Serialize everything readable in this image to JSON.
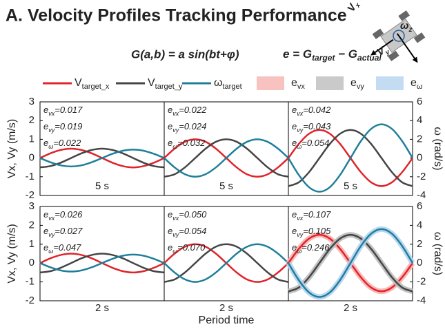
{
  "title": "A. Velocity Profiles Tracking Performance",
  "diagram_labels": [
    {
      "main": "V",
      "sub": "x"
    },
    {
      "main": "V",
      "sub": "y"
    },
    {
      "main": "ω",
      "sub": "z"
    }
  ],
  "formula": {
    "g": "G(a,b) = a sin(bt+φ)",
    "e_parts": [
      {
        "text": "e  =  G"
      },
      {
        "text": "target",
        "sub": true
      },
      {
        "text": " − G"
      },
      {
        "text": "actual",
        "sub": true
      }
    ]
  },
  "legend": [
    {
      "label": "V",
      "sub": "target_x",
      "color": "#e0242a",
      "kind": "line"
    },
    {
      "label": "V",
      "sub": "target_y",
      "color": "#454545",
      "kind": "line"
    },
    {
      "label": "ω",
      "sub": "target",
      "color": "#1f7f9a",
      "kind": "line"
    },
    {
      "label": "e",
      "sub": "vx",
      "color": "#f6b3b1",
      "kind": "patch"
    },
    {
      "label": "e",
      "sub": "vy",
      "color": "#bdbdbd",
      "kind": "patch"
    },
    {
      "label": "e",
      "sub": "ω",
      "color": "#b5d3ef",
      "kind": "patch"
    }
  ],
  "xlabel": "Period time",
  "chart_data": [
    {
      "type": "line",
      "xlabel": "5 s",
      "x": [
        0,
        1,
        2,
        3,
        4,
        5,
        6,
        7,
        8,
        9,
        10,
        11,
        12
      ],
      "xlim": [
        0,
        12
      ],
      "ylim": [
        -2,
        3
      ],
      "y2lim": [
        -4,
        6
      ],
      "yticks": [
        -2,
        -1,
        0,
        1,
        2,
        3
      ],
      "ylabel": "Vx, Vy (m/s)",
      "annotations": [
        {
          "symbol": "e",
          "sub": "vx",
          "text": "=0.017"
        },
        {
          "symbol": "e",
          "sub": "vy",
          "text": "=0.019"
        },
        {
          "symbol": "e",
          "sub": "ω",
          "text": "=0.022"
        }
      ],
      "series": [
        {
          "color": "#e0242a",
          "values": [
            0,
            0.25,
            0.43,
            0.5,
            0.43,
            0.25,
            0,
            -0.25,
            -0.43,
            -0.5,
            -0.43,
            -0.25,
            0
          ]
        },
        {
          "color": "#454545",
          "values": [
            -0.5,
            -0.43,
            -0.25,
            0,
            0.25,
            0.43,
            0.5,
            0.43,
            0.25,
            0,
            -0.25,
            -0.43,
            -0.5
          ]
        },
        {
          "color": "#1f7f9a",
          "axis": "y2",
          "values": [
            0,
            -0.45,
            -0.78,
            -0.9,
            -0.78,
            -0.45,
            0,
            0.45,
            0.78,
            0.9,
            0.78,
            0.45,
            0
          ]
        }
      ]
    },
    {
      "type": "line",
      "xlabel": "5 s",
      "x": [
        0,
        1,
        2,
        3,
        4,
        5,
        6,
        7,
        8,
        9,
        10,
        11,
        12
      ],
      "xlim": [
        0,
        12
      ],
      "ylim": [
        -2,
        3
      ],
      "y2lim": [
        -4,
        6
      ],
      "annotations": [
        {
          "symbol": "e",
          "sub": "vx",
          "text": "=0.022"
        },
        {
          "symbol": "e",
          "sub": "vy",
          "text": "=0.024"
        },
        {
          "symbol": "e",
          "sub": "ω",
          "text": "=0.032"
        }
      ],
      "series": [
        {
          "color": "#e0242a",
          "values": [
            0,
            0.5,
            0.87,
            1,
            0.87,
            0.5,
            0,
            -0.5,
            -0.87,
            -1,
            -0.87,
            -0.5,
            0
          ]
        },
        {
          "color": "#454545",
          "values": [
            -1,
            -0.87,
            -0.5,
            0,
            0.5,
            0.87,
            1,
            0.87,
            0.5,
            0,
            -0.5,
            -0.87,
            -1
          ]
        },
        {
          "color": "#1f7f9a",
          "axis": "y2",
          "values": [
            0,
            -1,
            -1.73,
            -2,
            -1.73,
            -1,
            0,
            1,
            1.73,
            2,
            1.73,
            1,
            0
          ]
        }
      ]
    },
    {
      "type": "line",
      "xlabel": "5 s",
      "x": [
        0,
        1,
        2,
        3,
        4,
        5,
        6,
        7,
        8,
        9,
        10,
        11,
        12
      ],
      "xlim": [
        0,
        12
      ],
      "ylim": [
        -2,
        3
      ],
      "y2lim": [
        -4,
        6
      ],
      "y2ticks": [
        -4,
        -2,
        0,
        2,
        4,
        6
      ],
      "y2label": "ω (rad/s)",
      "annotations": [
        {
          "symbol": "e",
          "sub": "vx",
          "text": "=0.042"
        },
        {
          "symbol": "e",
          "sub": "vy",
          "text": "=0.043"
        },
        {
          "symbol": "e",
          "sub": "ω",
          "text": "=0.054"
        }
      ],
      "series": [
        {
          "color": "#e0242a",
          "values": [
            0,
            0.75,
            1.3,
            1.5,
            1.3,
            0.75,
            0,
            -0.75,
            -1.3,
            -1.5,
            -1.3,
            -0.75,
            0
          ]
        },
        {
          "color": "#454545",
          "values": [
            -1.5,
            -1.3,
            -0.75,
            0,
            0.75,
            1.3,
            1.5,
            1.3,
            0.75,
            0,
            -0.75,
            -1.3,
            -1.5
          ]
        },
        {
          "color": "#1f7f9a",
          "axis": "y2",
          "values": [
            0,
            -1.8,
            -3.12,
            -3.6,
            -3.12,
            -1.8,
            0,
            1.8,
            3.12,
            3.6,
            3.12,
            1.8,
            0
          ]
        }
      ]
    },
    {
      "type": "line",
      "xlabel": "2 s",
      "x": [
        0,
        1,
        2,
        3,
        4,
        5,
        6,
        7,
        8,
        9,
        10,
        11,
        12
      ],
      "xlim": [
        0,
        12
      ],
      "ylim": [
        -2,
        3
      ],
      "y2lim": [
        -4,
        6
      ],
      "yticks": [
        -2,
        -1,
        0,
        1,
        2,
        3
      ],
      "ylabel": "Vx, Vy (m/s)",
      "annotations": [
        {
          "symbol": "e",
          "sub": "vx",
          "text": "=0.026"
        },
        {
          "symbol": "e",
          "sub": "vy",
          "text": "=0.027"
        },
        {
          "symbol": "e",
          "sub": "ω",
          "text": "=0.047"
        }
      ],
      "series": [
        {
          "color": "#e0242a",
          "values": [
            0,
            0.25,
            0.43,
            0.5,
            0.43,
            0.25,
            0,
            -0.25,
            -0.43,
            -0.5,
            -0.43,
            -0.25,
            0
          ]
        },
        {
          "color": "#454545",
          "values": [
            -0.5,
            -0.43,
            -0.25,
            0,
            0.25,
            0.43,
            0.5,
            0.43,
            0.25,
            0,
            -0.25,
            -0.43,
            -0.5
          ]
        },
        {
          "color": "#1f7f9a",
          "axis": "y2",
          "values": [
            0,
            -0.45,
            -0.78,
            -0.9,
            -0.78,
            -0.45,
            0,
            0.45,
            0.78,
            0.9,
            0.78,
            0.45,
            0
          ]
        }
      ]
    },
    {
      "type": "line",
      "xlabel": "2 s",
      "x": [
        0,
        1,
        2,
        3,
        4,
        5,
        6,
        7,
        8,
        9,
        10,
        11,
        12
      ],
      "xlim": [
        0,
        12
      ],
      "ylim": [
        -2,
        3
      ],
      "y2lim": [
        -4,
        6
      ],
      "annotations": [
        {
          "symbol": "e",
          "sub": "vx",
          "text": "=0.050"
        },
        {
          "symbol": "e",
          "sub": "vy",
          "text": "=0.054"
        },
        {
          "symbol": "e",
          "sub": "ω",
          "text": "=0.070"
        }
      ],
      "series": [
        {
          "color": "#e0242a",
          "values": [
            0,
            0.5,
            0.87,
            1,
            0.87,
            0.5,
            0,
            -0.5,
            -0.87,
            -1,
            -0.87,
            -0.5,
            0
          ]
        },
        {
          "color": "#454545",
          "values": [
            -1,
            -0.87,
            -0.5,
            0,
            0.5,
            0.87,
            1,
            0.87,
            0.5,
            0,
            -0.5,
            -0.87,
            -1
          ]
        },
        {
          "color": "#1f7f9a",
          "axis": "y2",
          "values": [
            0,
            -1,
            -1.73,
            -2,
            -1.73,
            -1,
            0,
            1,
            1.73,
            2,
            1.73,
            1,
            0
          ]
        }
      ]
    },
    {
      "type": "line",
      "xlabel": "2 s",
      "x": [
        0,
        1,
        2,
        3,
        4,
        5,
        6,
        7,
        8,
        9,
        10,
        11,
        12
      ],
      "xlim": [
        0,
        12
      ],
      "ylim": [
        -2,
        3
      ],
      "y2lim": [
        -4,
        6
      ],
      "y2ticks": [
        -4,
        -2,
        0,
        2,
        4,
        6
      ],
      "y2label": "ω (rad/s)",
      "error_band": true,
      "annotations": [
        {
          "symbol": "e",
          "sub": "vx",
          "text": "=0.107"
        },
        {
          "symbol": "e",
          "sub": "vy",
          "text": "=0.105"
        },
        {
          "symbol": "e",
          "sub": "ω",
          "text": "=0.246"
        }
      ],
      "series": [
        {
          "color": "#e0242a",
          "values": [
            0,
            0.75,
            1.3,
            1.5,
            1.3,
            0.75,
            0,
            -0.75,
            -1.3,
            -1.5,
            -1.3,
            -0.75,
            0
          ]
        },
        {
          "color": "#454545",
          "values": [
            -1.5,
            -1.3,
            -0.75,
            0,
            0.75,
            1.3,
            1.5,
            1.3,
            0.75,
            0,
            -0.75,
            -1.3,
            -1.5
          ]
        },
        {
          "color": "#1f7f9a",
          "axis": "y2",
          "values": [
            0,
            -1.8,
            -3.12,
            -3.6,
            -3.12,
            -1.8,
            0,
            1.8,
            3.12,
            3.6,
            3.12,
            1.8,
            0
          ]
        }
      ]
    }
  ]
}
